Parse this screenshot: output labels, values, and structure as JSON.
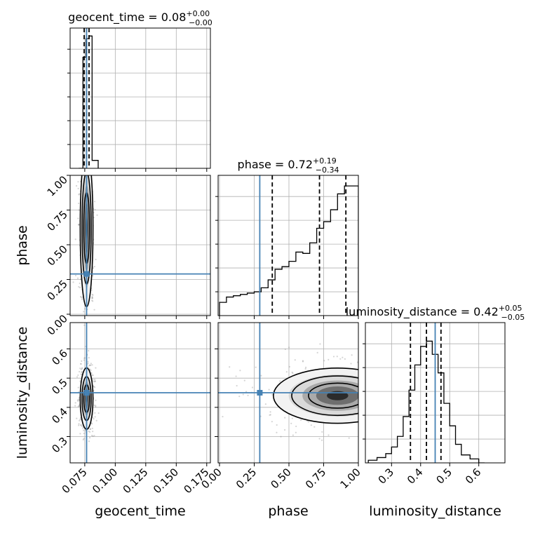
{
  "chart_data": {
    "type": "corner",
    "parameters": [
      "geocent_time",
      "phase",
      "luminosity_distance"
    ],
    "injection": {
      "geocent_time": 0.0765,
      "phase": 0.29,
      "luminosity_distance": 0.45
    },
    "ranges": {
      "geocent_time": [
        0.063,
        0.178
      ],
      "phase": [
        -0.01,
        1.0
      ],
      "luminosity_distance": [
        0.21,
        0.69
      ]
    },
    "ticks": {
      "geocent_time": [
        0.075,
        0.1,
        0.125,
        0.15,
        0.175
      ],
      "phase": [
        0.0,
        0.25,
        0.5,
        0.75,
        1.0
      ],
      "luminosity_distance": [
        0.3,
        0.4,
        0.5,
        0.6
      ]
    },
    "tick_labels": {
      "geocent_time": [
        "0.075",
        "0.100",
        "0.125",
        "0.150",
        "0.175"
      ],
      "phase": [
        "0.00",
        "0.25",
        "0.50",
        "0.75",
        "1.00"
      ],
      "luminosity_distance": [
        "0.3",
        "0.4",
        "0.5",
        "0.6"
      ]
    },
    "titles": {
      "geocent_time": {
        "name": "geocent_time",
        "median": "0.08",
        "plus": "+0.00",
        "minus": "−0.00"
      },
      "phase": {
        "name": "phase",
        "median": "0.72",
        "plus": "+0.19",
        "minus": "−0.34"
      },
      "luminosity_distance": {
        "name": "luminosity_distance",
        "median": "0.42",
        "plus": "+0.05",
        "minus": "−0.05"
      }
    },
    "quantiles": {
      "geocent_time": [
        0.0745,
        0.0765,
        0.0785
      ],
      "phase": [
        0.38,
        0.72,
        0.91
      ],
      "luminosity_distance": [
        0.365,
        0.42,
        0.47
      ]
    },
    "histograms": {
      "geocent_time": {
        "edges": [
          0.07,
          0.0735,
          0.076,
          0.0785,
          0.081,
          0.086
        ],
        "counts": [
          0,
          0.84,
          0.98,
          1.0,
          0.06
        ]
      },
      "phase": {
        "edges": [
          0.0,
          0.05,
          0.1,
          0.15,
          0.2,
          0.25,
          0.3,
          0.35,
          0.4,
          0.45,
          0.5,
          0.55,
          0.6,
          0.65,
          0.7,
          0.75,
          0.8,
          0.85,
          0.9,
          0.95,
          1.0
        ],
        "counts": [
          0.1,
          0.14,
          0.15,
          0.16,
          0.17,
          0.18,
          0.21,
          0.27,
          0.35,
          0.37,
          0.41,
          0.48,
          0.47,
          0.55,
          0.66,
          0.71,
          0.8,
          0.92,
          0.98,
          0.98
        ]
      },
      "luminosity_distance": {
        "edges": [
          0.22,
          0.25,
          0.28,
          0.3,
          0.32,
          0.34,
          0.36,
          0.38,
          0.4,
          0.42,
          0.44,
          0.46,
          0.48,
          0.5,
          0.52,
          0.54,
          0.57,
          0.6,
          0.62
        ],
        "counts": [
          0.02,
          0.04,
          0.07,
          0.12,
          0.2,
          0.35,
          0.55,
          0.74,
          0.88,
          0.92,
          0.82,
          0.68,
          0.45,
          0.28,
          0.14,
          0.06,
          0.03,
          0.0
        ]
      }
    },
    "panels_2d": [
      {
        "x": "geocent_time",
        "y": "phase",
        "center": [
          0.0765,
          0.62
        ],
        "spread": [
          0.0025,
          0.27
        ]
      },
      {
        "x": "geocent_time",
        "y": "luminosity_distance",
        "center": [
          0.0765,
          0.43
        ],
        "spread": [
          0.0025,
          0.05
        ]
      },
      {
        "x": "phase",
        "y": "luminosity_distance",
        "center": [
          0.85,
          0.44
        ],
        "spread": [
          0.22,
          0.045
        ]
      }
    ]
  }
}
